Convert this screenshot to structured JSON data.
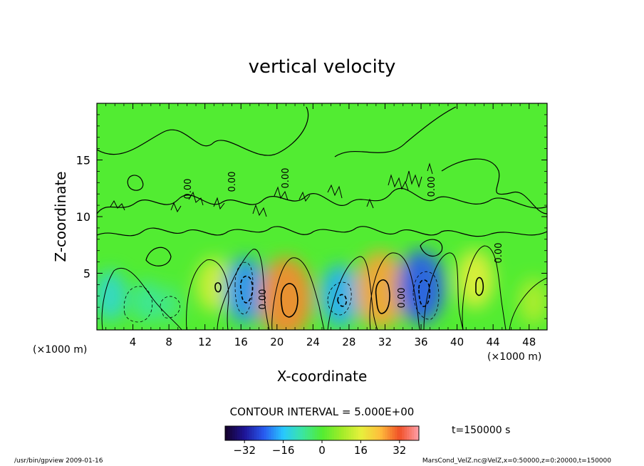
{
  "chart_data": {
    "type": "contour",
    "title": "vertical velocity",
    "xlabel": "X-coordinate",
    "ylabel": "Z-coordinate",
    "x_unit_left": "(×1000 m)",
    "x_unit_right": "(×1000 m)",
    "xlim": [
      0,
      50
    ],
    "ylim": [
      0,
      20
    ],
    "x_ticks": [
      "4",
      "8",
      "12",
      "16",
      "20",
      "24",
      "28",
      "32",
      "36",
      "40",
      "44",
      "48"
    ],
    "y_ticks": [
      "5",
      "10",
      "15"
    ],
    "contour_interval_label": "CONTOUR INTERVAL = 5.000E+00",
    "contour_labels": [
      "0.00",
      "0.00",
      "0.00",
      "0.00",
      "0.00",
      "0.00",
      "0.00"
    ],
    "time_label": "t=150000 s",
    "colorbar": {
      "range": [
        -40,
        40
      ],
      "ticks": [
        "−32",
        "−16",
        "0",
        "16",
        "32"
      ]
    },
    "cells": [
      {
        "x": 1.5,
        "z": 3.0,
        "w": -12
      },
      {
        "x": 5.5,
        "z": 2.5,
        "w": -8
      },
      {
        "x": 8.0,
        "z": 2.2,
        "w": -6
      },
      {
        "x": 13.0,
        "z": 4.0,
        "w": 14
      },
      {
        "x": 16.5,
        "z": 3.5,
        "w": -20
      },
      {
        "x": 21.0,
        "z": 2.8,
        "w": 28
      },
      {
        "x": 27.0,
        "z": 3.0,
        "w": -18
      },
      {
        "x": 31.5,
        "z": 3.5,
        "w": 26
      },
      {
        "x": 36.0,
        "z": 3.8,
        "w": -24
      },
      {
        "x": 42.0,
        "z": 4.5,
        "w": 16
      },
      {
        "x": 48.5,
        "z": 2.5,
        "w": 10
      }
    ]
  },
  "footer": {
    "left": "/usr/bin/gpview   2009-01-16",
    "right": "MarsCond_VelZ.nc@VelZ,x=0:50000,z=0:20000,t=150000"
  }
}
